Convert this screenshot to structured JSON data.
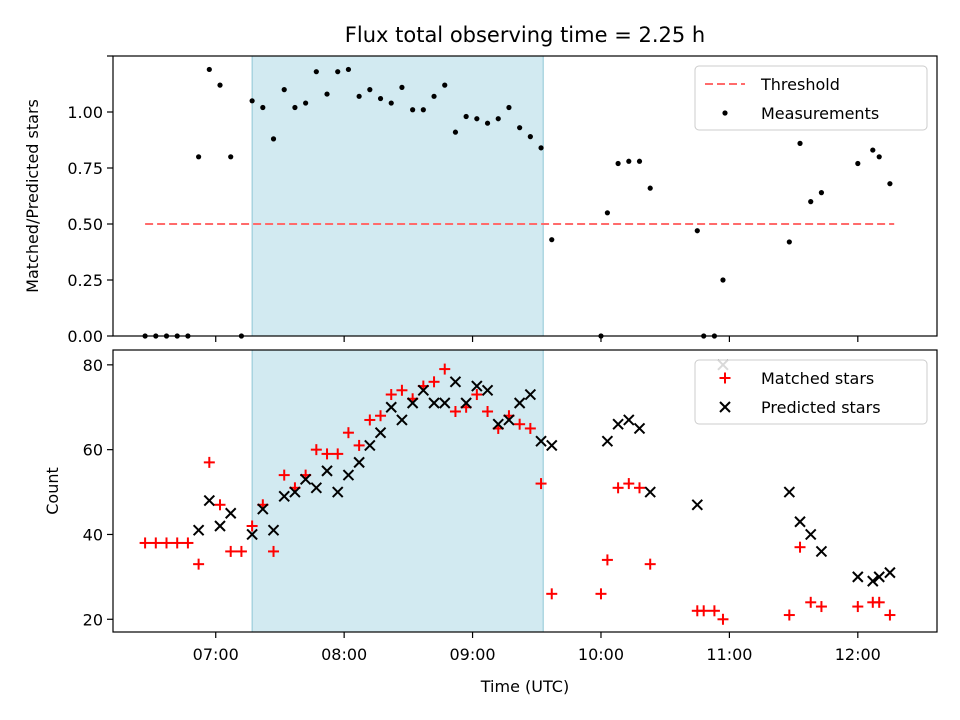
{
  "chart_data": [
    {
      "type": "scatter",
      "title": "Flux total observing time = 2.25 h",
      "xlabel": "",
      "ylabel": "Matched/Predicted stars",
      "xlim": [
        "06:12",
        "12:37"
      ],
      "ylim": [
        0,
        1.25
      ],
      "yticks": [
        0,
        0.25,
        0.5,
        0.75,
        1.0,
        1.25
      ],
      "ytick_labels": [
        "0.00",
        "0.25",
        "0.50",
        "0.75",
        "1.00",
        ""
      ],
      "shaded_span": {
        "start": "07:17",
        "end": "09:33",
        "color": "#add8e6"
      },
      "legend": "top-right",
      "series": [
        {
          "name": "Threshold",
          "kind": "dashed-line",
          "color": "#ff6b6b",
          "x": [
            "06:27",
            "12:17"
          ],
          "y": [
            0.5,
            0.5
          ]
        },
        {
          "name": "Measurements",
          "kind": "dots",
          "color": "#000000",
          "points": [
            [
              "06:27",
              0.0
            ],
            [
              "06:32",
              0.0
            ],
            [
              "06:37",
              0.0
            ],
            [
              "06:42",
              0.0
            ],
            [
              "06:47",
              0.0
            ],
            [
              "06:52",
              0.8
            ],
            [
              "06:57",
              1.19
            ],
            [
              "07:02",
              1.12
            ],
            [
              "07:07",
              0.8
            ],
            [
              "07:12",
              0.0
            ],
            [
              "07:17",
              1.05
            ],
            [
              "07:22",
              1.02
            ],
            [
              "07:27",
              0.88
            ],
            [
              "07:32",
              1.1
            ],
            [
              "07:37",
              1.02
            ],
            [
              "07:42",
              1.04
            ],
            [
              "07:47",
              1.18
            ],
            [
              "07:52",
              1.08
            ],
            [
              "07:57",
              1.18
            ],
            [
              "08:02",
              1.19
            ],
            [
              "08:07",
              1.07
            ],
            [
              "08:12",
              1.1
            ],
            [
              "08:17",
              1.06
            ],
            [
              "08:22",
              1.04
            ],
            [
              "08:27",
              1.11
            ],
            [
              "08:32",
              1.01
            ],
            [
              "08:37",
              1.01
            ],
            [
              "08:42",
              1.07
            ],
            [
              "08:47",
              1.12
            ],
            [
              "08:52",
              0.91
            ],
            [
              "08:57",
              0.98
            ],
            [
              "09:02",
              0.97
            ],
            [
              "09:07",
              0.95
            ],
            [
              "09:12",
              0.97
            ],
            [
              "09:17",
              1.02
            ],
            [
              "09:22",
              0.93
            ],
            [
              "09:27",
              0.89
            ],
            [
              "09:32",
              0.84
            ],
            [
              "09:37",
              0.43
            ],
            [
              "10:00",
              0.0
            ],
            [
              "10:03",
              0.55
            ],
            [
              "10:08",
              0.77
            ],
            [
              "10:13",
              0.78
            ],
            [
              "10:18",
              0.78
            ],
            [
              "10:23",
              0.66
            ],
            [
              "10:45",
              0.47
            ],
            [
              "10:48",
              0.0
            ],
            [
              "10:53",
              0.0
            ],
            [
              "10:57",
              0.25
            ],
            [
              "11:28",
              0.42
            ],
            [
              "11:33",
              0.86
            ],
            [
              "11:38",
              0.6
            ],
            [
              "11:43",
              0.64
            ],
            [
              "12:00",
              0.77
            ],
            [
              "12:07",
              0.83
            ],
            [
              "12:10",
              0.8
            ],
            [
              "12:15",
              0.68
            ]
          ]
        }
      ]
    },
    {
      "type": "scatter",
      "title": "",
      "xlabel": "Time (UTC)",
      "ylabel": "Count",
      "xlim": [
        "06:12",
        "12:37"
      ],
      "ylim": [
        17,
        83.5
      ],
      "yticks": [
        20,
        40,
        60,
        80
      ],
      "ytick_labels": [
        "20",
        "40",
        "60",
        "80"
      ],
      "xticks": [
        "07:00",
        "08:00",
        "09:00",
        "10:00",
        "11:00",
        "12:00"
      ],
      "shaded_span": {
        "start": "07:17",
        "end": "09:33",
        "color": "#add8e6"
      },
      "legend": "top-right",
      "series": [
        {
          "name": "Matched stars",
          "kind": "plus",
          "color": "#ff0000",
          "points": [
            [
              "06:27",
              38
            ],
            [
              "06:32",
              38
            ],
            [
              "06:37",
              38
            ],
            [
              "06:42",
              38
            ],
            [
              "06:47",
              38
            ],
            [
              "06:52",
              33
            ],
            [
              "06:57",
              57
            ],
            [
              "07:02",
              47
            ],
            [
              "07:07",
              36
            ],
            [
              "07:12",
              36
            ],
            [
              "07:17",
              42
            ],
            [
              "07:22",
              47
            ],
            [
              "07:27",
              36
            ],
            [
              "07:32",
              54
            ],
            [
              "07:37",
              51
            ],
            [
              "07:42",
              54
            ],
            [
              "07:47",
              60
            ],
            [
              "07:52",
              59
            ],
            [
              "07:57",
              59
            ],
            [
              "08:02",
              64
            ],
            [
              "08:07",
              61
            ],
            [
              "08:12",
              67
            ],
            [
              "08:17",
              68
            ],
            [
              "08:22",
              73
            ],
            [
              "08:27",
              74
            ],
            [
              "08:32",
              72
            ],
            [
              "08:37",
              75
            ],
            [
              "08:42",
              76
            ],
            [
              "08:47",
              79
            ],
            [
              "08:52",
              69
            ],
            [
              "08:57",
              70
            ],
            [
              "09:02",
              73
            ],
            [
              "09:07",
              69
            ],
            [
              "09:12",
              65
            ],
            [
              "09:17",
              68
            ],
            [
              "09:22",
              66
            ],
            [
              "09:27",
              65
            ],
            [
              "09:32",
              52
            ],
            [
              "09:37",
              26
            ],
            [
              "10:00",
              26
            ],
            [
              "10:03",
              34
            ],
            [
              "10:08",
              51
            ],
            [
              "10:13",
              52
            ],
            [
              "10:18",
              51
            ],
            [
              "10:23",
              33
            ],
            [
              "10:45",
              22
            ],
            [
              "10:48",
              22
            ],
            [
              "10:53",
              22
            ],
            [
              "10:57",
              20
            ],
            [
              "11:28",
              21
            ],
            [
              "11:33",
              37
            ],
            [
              "11:38",
              24
            ],
            [
              "11:43",
              23
            ],
            [
              "12:00",
              23
            ],
            [
              "12:07",
              24
            ],
            [
              "12:10",
              24
            ],
            [
              "12:15",
              21
            ]
          ]
        },
        {
          "name": "Predicted stars",
          "kind": "cross",
          "color": "#000000",
          "points": [
            [
              "06:52",
              41
            ],
            [
              "06:57",
              48
            ],
            [
              "07:02",
              42
            ],
            [
              "07:07",
              45
            ],
            [
              "07:17",
              40
            ],
            [
              "07:22",
              46
            ],
            [
              "07:27",
              41
            ],
            [
              "07:32",
              49
            ],
            [
              "07:37",
              50
            ],
            [
              "07:42",
              53
            ],
            [
              "07:47",
              51
            ],
            [
              "07:52",
              55
            ],
            [
              "07:57",
              50
            ],
            [
              "08:02",
              54
            ],
            [
              "08:07",
              57
            ],
            [
              "08:12",
              61
            ],
            [
              "08:17",
              64
            ],
            [
              "08:22",
              70
            ],
            [
              "08:27",
              67
            ],
            [
              "08:32",
              71
            ],
            [
              "08:37",
              74
            ],
            [
              "08:42",
              71
            ],
            [
              "08:47",
              71
            ],
            [
              "08:52",
              76
            ],
            [
              "08:57",
              71
            ],
            [
              "09:02",
              75
            ],
            [
              "09:07",
              74
            ],
            [
              "09:12",
              66
            ],
            [
              "09:17",
              67
            ],
            [
              "09:22",
              71
            ],
            [
              "09:27",
              73
            ],
            [
              "09:32",
              62
            ],
            [
              "09:37",
              61
            ],
            [
              "10:03",
              62
            ],
            [
              "10:08",
              66
            ],
            [
              "10:13",
              67
            ],
            [
              "10:18",
              65
            ],
            [
              "10:23",
              50
            ],
            [
              "10:45",
              47
            ],
            [
              "10:57",
              80
            ],
            [
              "11:28",
              50
            ],
            [
              "11:33",
              43
            ],
            [
              "11:38",
              40
            ],
            [
              "11:43",
              36
            ],
            [
              "12:00",
              30
            ],
            [
              "12:07",
              29
            ],
            [
              "12:10",
              30
            ],
            [
              "12:15",
              31
            ]
          ]
        }
      ]
    }
  ]
}
